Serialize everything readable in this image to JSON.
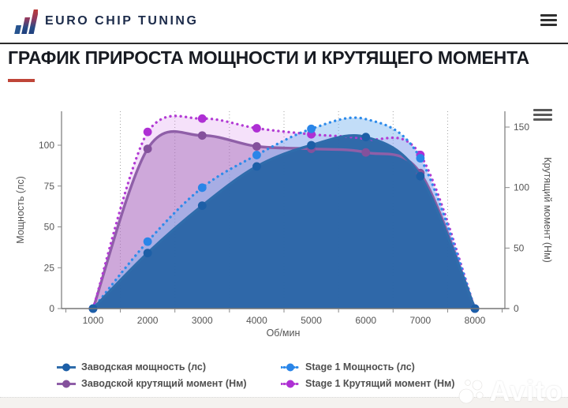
{
  "header": {
    "brand": "EURO CHIP TUNING"
  },
  "title": {
    "text": "ГРАФИК ПРИРОСТА МОЩНОСТИ И КРУТЯЩЕГО МОМЕНТА"
  },
  "watermark": {
    "text": "Avito"
  },
  "accent_colors": {
    "brand_red": "#bf4538",
    "brand_navy": "#1c2b4a"
  },
  "chart_data": {
    "type": "area",
    "x": [
      1000,
      2000,
      3000,
      4000,
      5000,
      6000,
      7000,
      8000
    ],
    "x_tick_labels": [
      "1000",
      "2000",
      "3000",
      "4000",
      "5000",
      "6000",
      "7000",
      "8000"
    ],
    "xlabel": "Об/мин",
    "axes": {
      "left": {
        "label": "Мощность (лс)",
        "ticks": [
          0,
          25,
          50,
          75,
          100
        ],
        "range": [
          0,
          121
        ]
      },
      "right": {
        "label": "Крутящий момент (Нм)",
        "ticks": [
          0,
          50,
          100,
          150
        ],
        "range": [
          0,
          163
        ]
      }
    },
    "grid": {
      "vertical_dotted_at": [
        1500,
        2500,
        3500,
        4500,
        5500,
        6500,
        7500
      ]
    },
    "legend_position": "bottom",
    "series": [
      {
        "name": "Заводская мощность (лс)",
        "axis": "left",
        "unit": "лс",
        "line": "solid",
        "color": "#2f6cab",
        "marker_color": "#1d5fa7",
        "fill": "rgba(40,100,165,0.95)",
        "values": [
          0,
          34,
          63,
          87,
          100,
          105,
          81,
          0
        ]
      },
      {
        "name": "Заводской крутящий момент (Нм)",
        "axis": "right",
        "unit": "Нм",
        "line": "solid",
        "color": "#8f5fa8",
        "marker_color": "#84519c",
        "fill": "rgba(160,100,180,0.45)",
        "values": [
          0,
          132,
          143,
          134,
          132,
          129,
          112,
          0
        ]
      },
      {
        "name": "Stage 1 Мощность (лс)",
        "axis": "left",
        "unit": "лс",
        "line": "dotted",
        "color": "#2e8bea",
        "marker_color": "#2a85e8",
        "fill": "rgba(120,180,240,0.45)",
        "values": [
          0,
          41,
          74,
          94,
          110,
          116,
          92,
          0
        ],
        "marker_hidden_at": [
          6000
        ]
      },
      {
        "name": "Stage 1 Крутящий момент (Нм)",
        "axis": "right",
        "unit": "Нм",
        "line": "dotted",
        "color": "#b23bd4",
        "marker_color": "#ae2fd4",
        "fill": "rgba(210,120,230,0.22)",
        "values": [
          0,
          146,
          157,
          149,
          144,
          140,
          127,
          0
        ],
        "marker_hidden_at": [
          6000
        ]
      }
    ],
    "draw_order": [
      3,
      1,
      2,
      0
    ],
    "legend_order": [
      0,
      2,
      1,
      3
    ]
  }
}
